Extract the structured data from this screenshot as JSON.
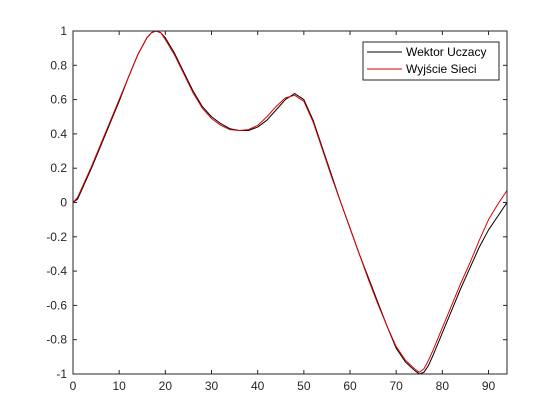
{
  "chart_data": {
    "type": "line",
    "title": "",
    "xlabel": "",
    "ylabel": "",
    "xlim": [
      0,
      94
    ],
    "ylim": [
      -1,
      1
    ],
    "x_ticks": [
      0,
      10,
      20,
      30,
      40,
      50,
      60,
      70,
      80,
      90
    ],
    "x_tick_labels": [
      "0",
      "10",
      "20",
      "30",
      "40",
      "50",
      "60",
      "70",
      "80",
      "90"
    ],
    "y_ticks": [
      -1,
      -0.8,
      -0.6,
      -0.4,
      -0.2,
      0,
      0.2,
      0.4,
      0.6,
      0.8,
      1
    ],
    "y_tick_labels": [
      "-1",
      "-0.8",
      "-0.6",
      "-0.4",
      "-0.2",
      "0",
      "0.2",
      "0.4",
      "0.6",
      "0.8",
      "1"
    ],
    "grid": false,
    "legend_position": "top-right",
    "series": [
      {
        "name": "Wektor Uczacy",
        "color": "#000000",
        "x": [
          0,
          1,
          2,
          4,
          6,
          8,
          10,
          12,
          14,
          16,
          17,
          18,
          19,
          20,
          22,
          24,
          26,
          28,
          30,
          32,
          34,
          36,
          38,
          40,
          42,
          44,
          46,
          48,
          50,
          52,
          54,
          56,
          58,
          60,
          62,
          64,
          66,
          68,
          70,
          72,
          74,
          75,
          76,
          77,
          78,
          80,
          82,
          84,
          86,
          88,
          90,
          92,
          94
        ],
        "y": [
          0.0,
          0.02,
          0.08,
          0.2,
          0.33,
          0.46,
          0.59,
          0.73,
          0.86,
          0.96,
          0.99,
          1.0,
          0.99,
          0.96,
          0.87,
          0.76,
          0.65,
          0.56,
          0.5,
          0.46,
          0.43,
          0.42,
          0.42,
          0.44,
          0.48,
          0.54,
          0.6,
          0.635,
          0.6,
          0.48,
          0.32,
          0.16,
          0.0,
          -0.15,
          -0.3,
          -0.44,
          -0.58,
          -0.72,
          -0.85,
          -0.93,
          -0.98,
          -1.0,
          -0.99,
          -0.95,
          -0.89,
          -0.76,
          -0.63,
          -0.5,
          -0.38,
          -0.26,
          -0.16,
          -0.08,
          0.0
        ]
      },
      {
        "name": "Wyjście Sieci",
        "color": "#dd0000",
        "x": [
          0,
          1,
          2,
          4,
          6,
          8,
          10,
          12,
          14,
          16,
          17,
          18,
          19,
          20,
          22,
          24,
          26,
          28,
          30,
          32,
          34,
          36,
          38,
          40,
          42,
          44,
          46,
          48,
          50,
          52,
          54,
          56,
          58,
          60,
          62,
          64,
          66,
          68,
          70,
          72,
          74,
          75,
          76,
          77,
          78,
          80,
          82,
          84,
          86,
          88,
          90,
          92,
          94
        ],
        "y": [
          0.0,
          0.03,
          0.09,
          0.21,
          0.34,
          0.47,
          0.6,
          0.73,
          0.86,
          0.96,
          0.99,
          1.0,
          0.99,
          0.95,
          0.86,
          0.75,
          0.64,
          0.55,
          0.49,
          0.45,
          0.425,
          0.42,
          0.425,
          0.45,
          0.5,
          0.56,
          0.61,
          0.625,
          0.59,
          0.47,
          0.31,
          0.15,
          0.0,
          -0.15,
          -0.3,
          -0.45,
          -0.59,
          -0.72,
          -0.84,
          -0.92,
          -0.97,
          -0.99,
          -0.97,
          -0.92,
          -0.86,
          -0.73,
          -0.6,
          -0.47,
          -0.35,
          -0.22,
          -0.1,
          -0.01,
          0.07
        ]
      }
    ]
  }
}
